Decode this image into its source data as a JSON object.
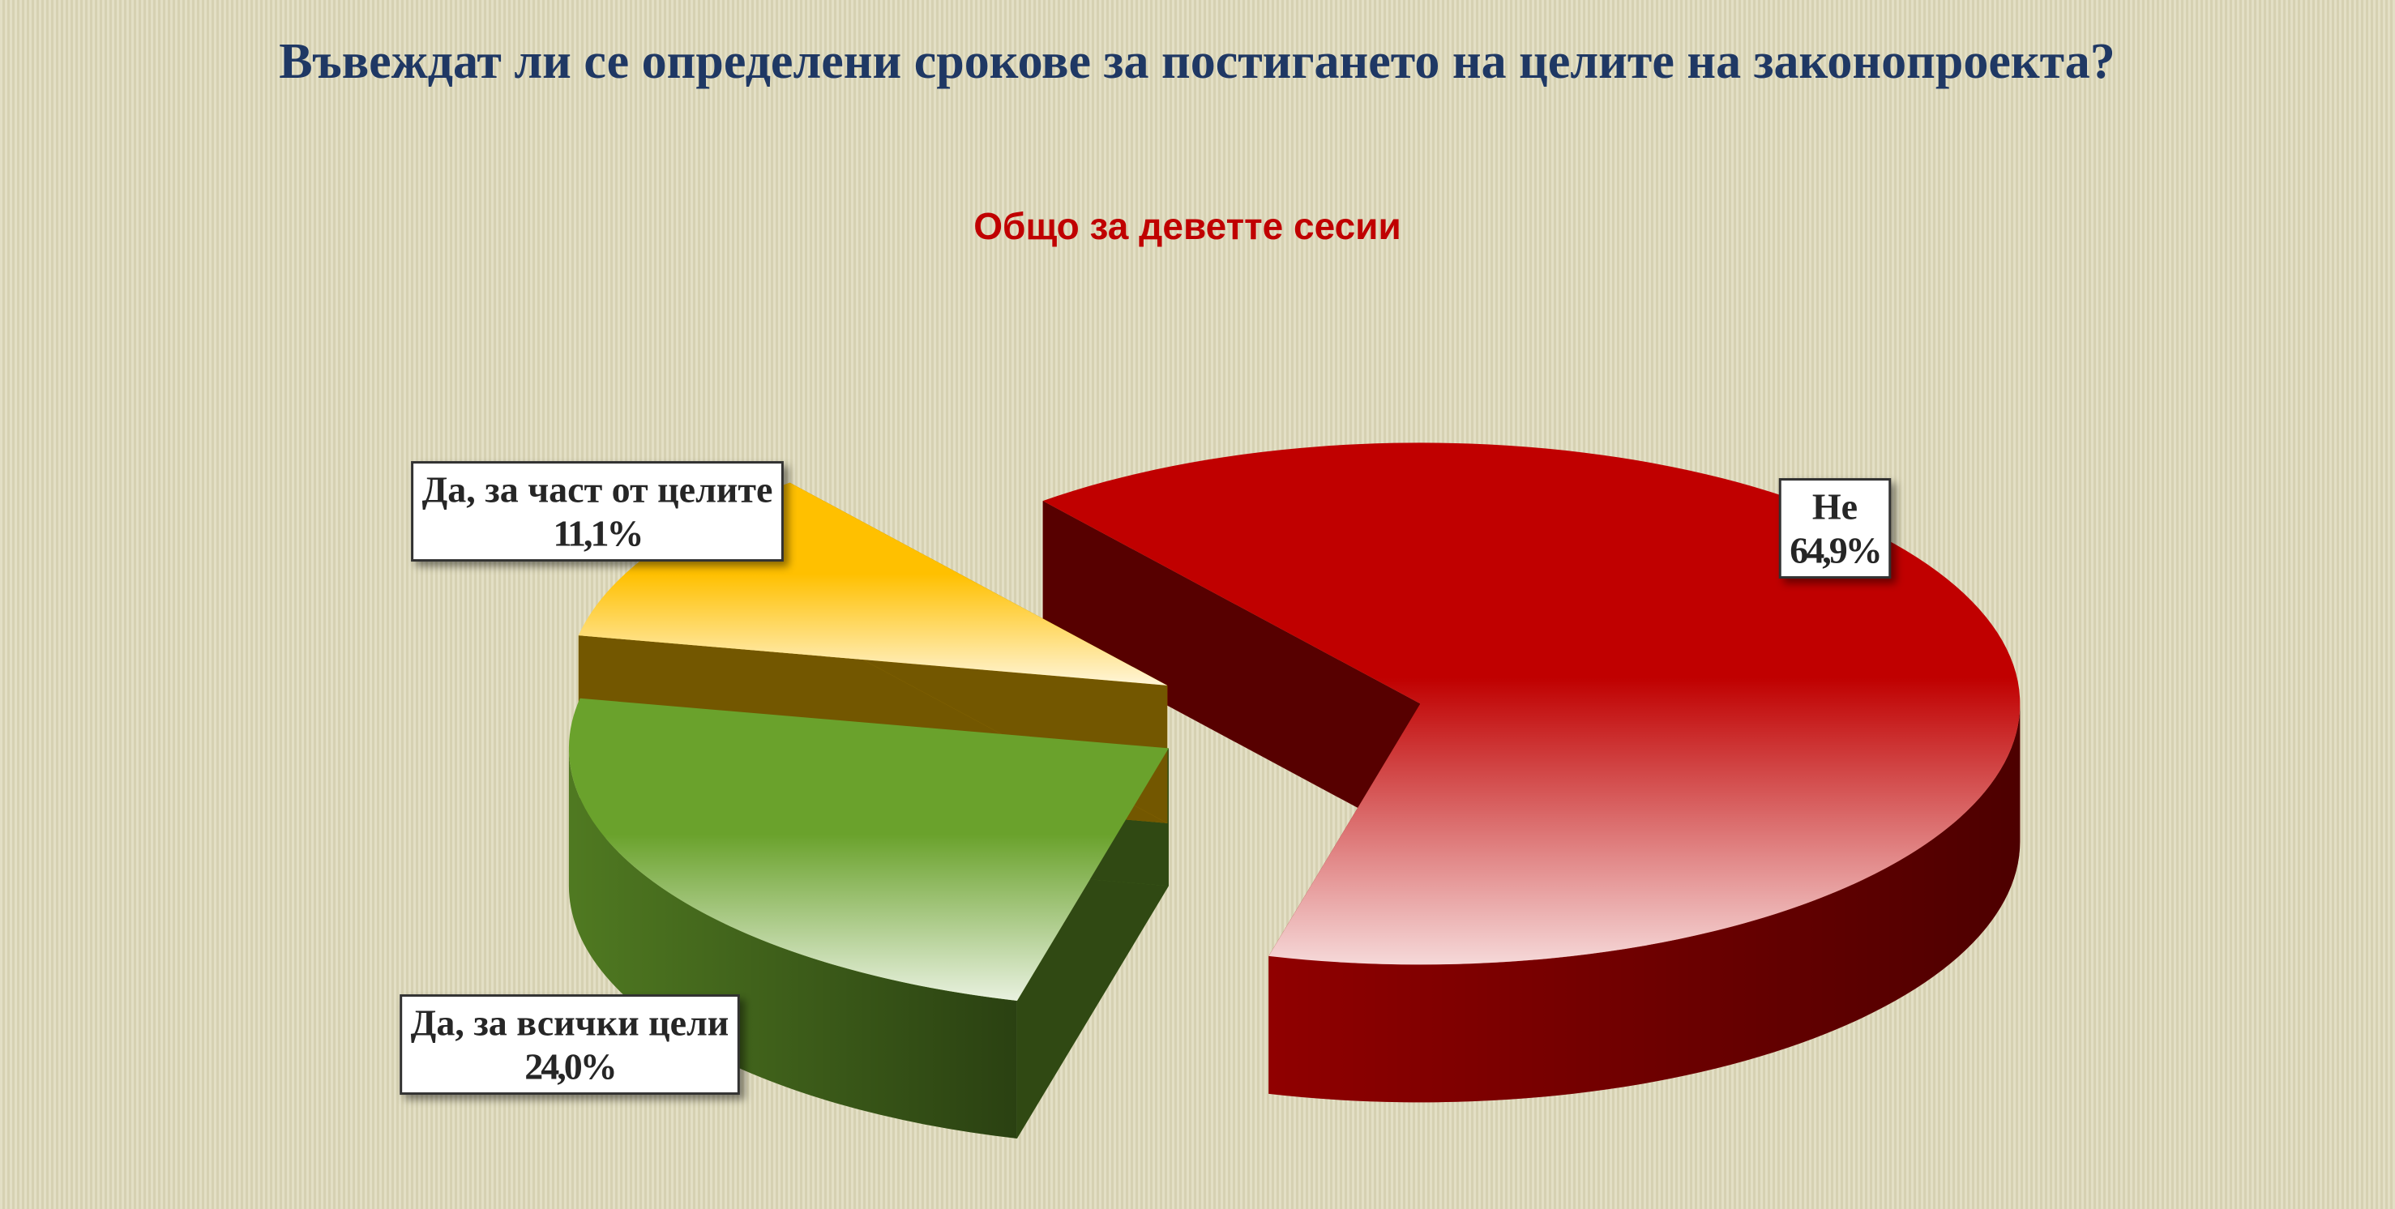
{
  "chart_data": {
    "type": "pie",
    "title": "Въвеждат ли се определени срокове за постигането на целите на законопроекта?",
    "subtitle": "Общо за деветте сесии",
    "categories": [
      "Не",
      "Да, за всички цели",
      "Да, за част от целите"
    ],
    "values": [
      64.9,
      24.0,
      11.1
    ],
    "value_labels": [
      "64,9%",
      "24,0%",
      "11,1%"
    ],
    "colors": [
      "#c00000",
      "#6aa22c",
      "#ffc000"
    ]
  }
}
